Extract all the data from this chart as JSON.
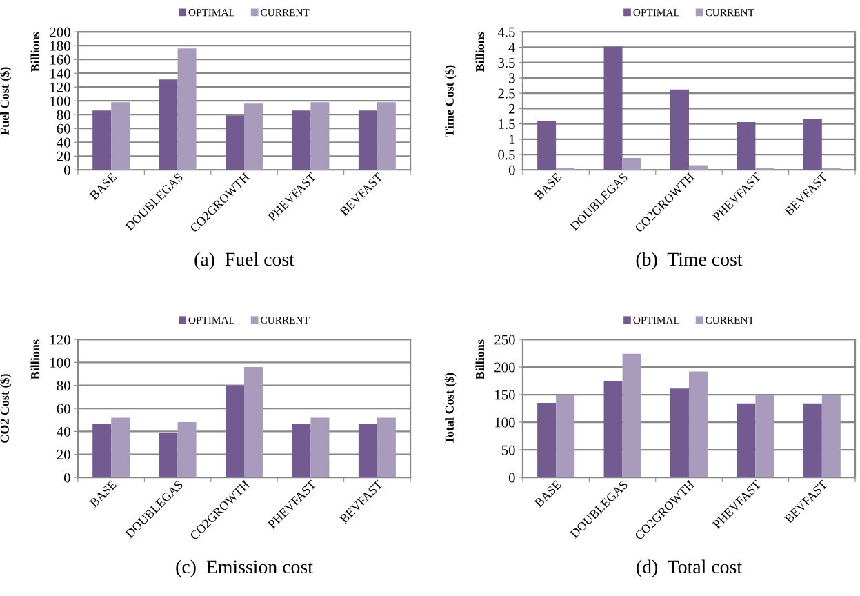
{
  "chart_data": [
    {
      "type": "bar",
      "xlabel": "(a)  Fuel cost",
      "ylabel": "Fuel Cost ($)",
      "annotations": [
        "Billions"
      ],
      "categories": [
        "BASE",
        "DOUBLEGAS",
        "CO2GROWTH",
        "PHEVFAST",
        "BEVFAST"
      ],
      "series": [
        {
          "name": "OPTIMAL",
          "color": "#735a91",
          "values": [
            86,
            131,
            79,
            86,
            86
          ]
        },
        {
          "name": "CURRENT",
          "color": "#a99bbc",
          "values": [
            98,
            176,
            96,
            98,
            98
          ]
        }
      ],
      "ylim": [
        0,
        200
      ],
      "yticks": [
        0,
        20,
        40,
        60,
        80,
        100,
        120,
        140,
        160,
        180,
        200
      ],
      "grid": "y",
      "legend": "top"
    },
    {
      "type": "bar",
      "xlabel": "(b)  Time cost",
      "ylabel": "Time Cost ($)",
      "annotations": [
        "Billions"
      ],
      "categories": [
        "BASE",
        "DOUBLEGAS",
        "CO2GROWTH",
        "PHEVFAST",
        "BEVFAST"
      ],
      "series": [
        {
          "name": "OPTIMAL",
          "color": "#735a91",
          "values": [
            1.6,
            4.02,
            2.62,
            1.56,
            1.66
          ]
        },
        {
          "name": "CURRENT",
          "color": "#a99bbc",
          "values": [
            0.06,
            0.39,
            0.15,
            0.06,
            0.07
          ]
        }
      ],
      "ylim": [
        0,
        4.5
      ],
      "yticks": [
        0,
        0.5,
        1,
        1.5,
        2,
        2.5,
        3,
        3.5,
        4,
        4.5
      ],
      "grid": "y",
      "legend": "top"
    },
    {
      "type": "bar",
      "xlabel": "(c)  Emission cost",
      "ylabel": "CO2 Cost ($)",
      "annotations": [
        "Billions"
      ],
      "categories": [
        "BASE",
        "DOUBLEGAS",
        "CO2GROWTH",
        "PHEVFAST",
        "BEVFAST"
      ],
      "series": [
        {
          "name": "OPTIMAL",
          "color": "#735a91",
          "values": [
            46.5,
            39,
            80,
            46.5,
            46.5
          ]
        },
        {
          "name": "CURRENT",
          "color": "#a99bbc",
          "values": [
            52,
            48,
            96,
            52,
            52
          ]
        }
      ],
      "ylim": [
        0,
        120
      ],
      "yticks": [
        0,
        20,
        40,
        60,
        80,
        100,
        120
      ],
      "grid": "y",
      "legend": "top"
    },
    {
      "type": "bar",
      "xlabel": "(d)  Total cost",
      "ylabel": "Total Cost ($)",
      "annotations": [
        "Billions"
      ],
      "categories": [
        "BASE",
        "DOUBLEGAS",
        "CO2GROWTH",
        "PHEVFAST",
        "BEVFAST"
      ],
      "series": [
        {
          "name": "OPTIMAL",
          "color": "#735a91",
          "values": [
            135,
            175,
            161,
            134,
            134
          ]
        },
        {
          "name": "CURRENT",
          "color": "#a99bbc",
          "values": [
            150,
            224,
            192,
            150,
            150
          ]
        }
      ],
      "ylim": [
        0,
        250
      ],
      "yticks": [
        0,
        50,
        100,
        150,
        200,
        250
      ],
      "grid": "y",
      "legend": "top"
    }
  ]
}
